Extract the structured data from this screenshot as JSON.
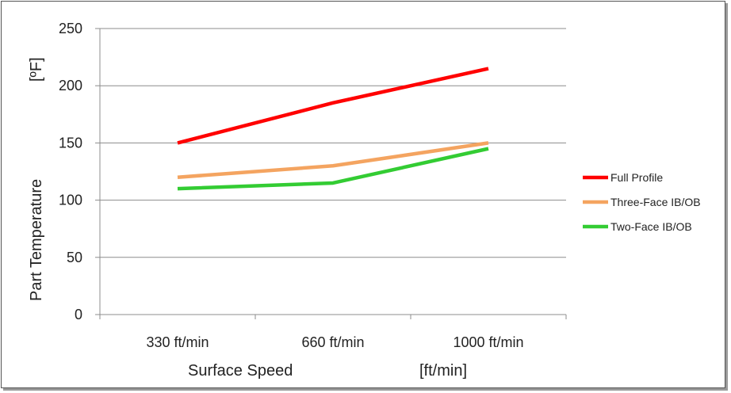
{
  "chart_data": {
    "type": "line",
    "categories": [
      "330 ft/min",
      "660 ft/min",
      "1000 ft/min"
    ],
    "series": [
      {
        "name": "Full Profile",
        "values": [
          150,
          185,
          215
        ],
        "color": "#ff0000"
      },
      {
        "name": "Three-Face IB/OB",
        "values": [
          120,
          130,
          150
        ],
        "color": "#f4a460"
      },
      {
        "name": "Two-Face IB/OB",
        "values": [
          110,
          115,
          145
        ],
        "color": "#33cc33"
      }
    ],
    "y_ticks": [
      0,
      50,
      100,
      150,
      200,
      250
    ],
    "ylim": [
      0,
      250
    ],
    "xlabel": "Surface Speed",
    "xlabel_unit": "[ft/min]",
    "ylabel": "Part Temperature",
    "ylabel_unit": "[ºF]",
    "grid": "horizontal",
    "legend_position": "right"
  }
}
